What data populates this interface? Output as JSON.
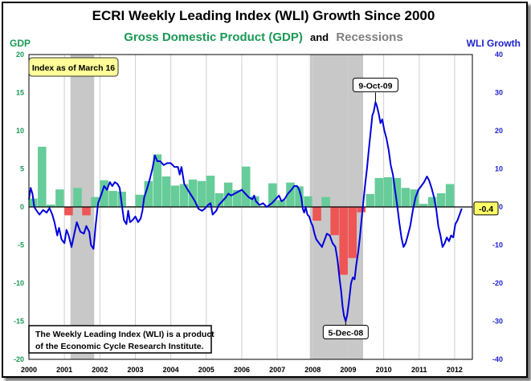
{
  "chart_data": {
    "type": "bar+line",
    "title": "ECRI Weekly Leading Index (WLI) Growth Since 2000",
    "subtitle": {
      "gdp": "Gross Domestic Product (GDP)",
      "and": "and",
      "recessions": "Recessions"
    },
    "left_axis": {
      "label": "GDP",
      "range": [
        -20,
        20
      ],
      "ticks": [
        20,
        15,
        10,
        5,
        0,
        -5,
        -10,
        -15,
        -20
      ]
    },
    "right_axis": {
      "label": "WLI Growth",
      "range": [
        -40,
        40
      ],
      "ticks": [
        40,
        30,
        20,
        10,
        0,
        -10,
        -20,
        -30,
        -40
      ]
    },
    "x_axis": {
      "range": [
        2000,
        2012.5
      ],
      "ticks": [
        "2000",
        "2001",
        "2002",
        "2003",
        "2004",
        "2005",
        "2006",
        "2007",
        "2008",
        "2009",
        "2010",
        "2011",
        "2012"
      ]
    },
    "recessions": [
      [
        2001.17,
        2001.84
      ],
      [
        2007.92,
        2009.42
      ]
    ],
    "gdp_quarters": [
      {
        "q": "2000Q1",
        "v": 1.1
      },
      {
        "q": "2000Q2",
        "v": 7.9
      },
      {
        "q": "2000Q3",
        "v": 0.3
      },
      {
        "q": "2000Q4",
        "v": 2.3
      },
      {
        "q": "2001Q1",
        "v": -1.1
      },
      {
        "q": "2001Q2",
        "v": 2.5
      },
      {
        "q": "2001Q3",
        "v": -1.1
      },
      {
        "q": "2001Q4",
        "v": 1.3
      },
      {
        "q": "2002Q1",
        "v": 3.5
      },
      {
        "q": "2002Q2",
        "v": 2.1
      },
      {
        "q": "2002Q3",
        "v": 2.0
      },
      {
        "q": "2002Q4",
        "v": 0.1
      },
      {
        "q": "2003Q1",
        "v": 1.6
      },
      {
        "q": "2003Q2",
        "v": 3.4
      },
      {
        "q": "2003Q3",
        "v": 6.9
      },
      {
        "q": "2003Q4",
        "v": 4.0
      },
      {
        "q": "2004Q1",
        "v": 2.8
      },
      {
        "q": "2004Q2",
        "v": 3.0
      },
      {
        "q": "2004Q3",
        "v": 3.6
      },
      {
        "q": "2004Q4",
        "v": 3.4
      },
      {
        "q": "2005Q1",
        "v": 4.1
      },
      {
        "q": "2005Q2",
        "v": 1.8
      },
      {
        "q": "2005Q3",
        "v": 3.2
      },
      {
        "q": "2005Q4",
        "v": 2.2
      },
      {
        "q": "2006Q1",
        "v": 5.3
      },
      {
        "q": "2006Q2",
        "v": 1.4
      },
      {
        "q": "2006Q3",
        "v": 0.1
      },
      {
        "q": "2006Q4",
        "v": 3.1
      },
      {
        "q": "2007Q1",
        "v": 0.9
      },
      {
        "q": "2007Q2",
        "v": 3.2
      },
      {
        "q": "2007Q3",
        "v": 2.7
      },
      {
        "q": "2007Q4",
        "v": 1.4
      },
      {
        "q": "2008Q1",
        "v": -1.8
      },
      {
        "q": "2008Q2",
        "v": 1.3
      },
      {
        "q": "2008Q3",
        "v": -3.7
      },
      {
        "q": "2008Q4",
        "v": -8.9
      },
      {
        "q": "2009Q1",
        "v": -6.7
      },
      {
        "q": "2009Q2",
        "v": -0.7
      },
      {
        "q": "2009Q3",
        "v": 1.7
      },
      {
        "q": "2009Q4",
        "v": 3.8
      },
      {
        "q": "2010Q1",
        "v": 3.9
      },
      {
        "q": "2010Q2",
        "v": 3.8
      },
      {
        "q": "2010Q3",
        "v": 2.5
      },
      {
        "q": "2010Q4",
        "v": 2.3
      },
      {
        "q": "2011Q1",
        "v": 0.4
      },
      {
        "q": "2011Q2",
        "v": 1.3
      },
      {
        "q": "2011Q3",
        "v": 1.8
      },
      {
        "q": "2011Q4",
        "v": 3.0
      }
    ],
    "wli_growth": [
      [
        2000.0,
        2.0
      ],
      [
        2000.05,
        5.0
      ],
      [
        2000.1,
        3.5
      ],
      [
        2000.15,
        0.0
      ],
      [
        2000.22,
        -1.0
      ],
      [
        2000.3,
        -2.0
      ],
      [
        2000.4,
        -0.8
      ],
      [
        2000.5,
        -1.5
      ],
      [
        2000.58,
        -0.3
      ],
      [
        2000.66,
        -2.0
      ],
      [
        2000.72,
        -4.0
      ],
      [
        2000.8,
        -7.5
      ],
      [
        2000.85,
        -5.5
      ],
      [
        2000.92,
        -8.5
      ],
      [
        2001.0,
        -9.5
      ],
      [
        2001.06,
        -6.0
      ],
      [
        2001.12,
        -7.5
      ],
      [
        2001.2,
        -10.5
      ],
      [
        2001.28,
        -7.0
      ],
      [
        2001.35,
        -4.0
      ],
      [
        2001.45,
        -6.5
      ],
      [
        2001.55,
        -7.0
      ],
      [
        2001.62,
        -5.0
      ],
      [
        2001.7,
        -6.5
      ],
      [
        2001.75,
        -10.0
      ],
      [
        2001.82,
        -11.0
      ],
      [
        2001.88,
        -5.0
      ],
      [
        2001.95,
        1.0
      ],
      [
        2002.05,
        3.5
      ],
      [
        2002.12,
        5.5
      ],
      [
        2002.2,
        4.5
      ],
      [
        2002.28,
        6.5
      ],
      [
        2002.35,
        5.5
      ],
      [
        2002.42,
        6.5
      ],
      [
        2002.5,
        6.0
      ],
      [
        2002.56,
        5.0
      ],
      [
        2002.62,
        0.5
      ],
      [
        2002.68,
        -3.5
      ],
      [
        2002.75,
        -4.5
      ],
      [
        2002.8,
        -1.0
      ],
      [
        2002.85,
        -4.0
      ],
      [
        2002.92,
        -3.5
      ],
      [
        2003.0,
        -2.5
      ],
      [
        2003.08,
        -4.0
      ],
      [
        2003.15,
        -3.0
      ],
      [
        2003.2,
        -1.0
      ],
      [
        2003.25,
        2.5
      ],
      [
        2003.32,
        4.5
      ],
      [
        2003.4,
        7.0
      ],
      [
        2003.48,
        10.0
      ],
      [
        2003.55,
        13.5
      ],
      [
        2003.62,
        12.0
      ],
      [
        2003.7,
        12.0
      ],
      [
        2003.8,
        11.0
      ],
      [
        2003.9,
        11.5
      ],
      [
        2004.0,
        11.5
      ],
      [
        2004.1,
        10.5
      ],
      [
        2004.2,
        10.5
      ],
      [
        2004.25,
        8.5
      ],
      [
        2004.3,
        10.5
      ],
      [
        2004.38,
        6.0
      ],
      [
        2004.48,
        4.5
      ],
      [
        2004.58,
        3.0
      ],
      [
        2004.68,
        1.5
      ],
      [
        2004.78,
        -0.5
      ],
      [
        2004.88,
        -1.0
      ],
      [
        2004.95,
        -0.5
      ],
      [
        2005.05,
        0.5
      ],
      [
        2005.12,
        1.0
      ],
      [
        2005.18,
        -2.0
      ],
      [
        2005.28,
        -1.0
      ],
      [
        2005.35,
        0.5
      ],
      [
        2005.45,
        1.5
      ],
      [
        2005.55,
        2.5
      ],
      [
        2005.62,
        3.5
      ],
      [
        2005.7,
        3.0
      ],
      [
        2005.8,
        3.5
      ],
      [
        2005.9,
        4.0
      ],
      [
        2006.0,
        4.5
      ],
      [
        2006.1,
        3.5
      ],
      [
        2006.2,
        2.5
      ],
      [
        2006.3,
        2.0
      ],
      [
        2006.35,
        3.0
      ],
      [
        2006.4,
        1.5
      ],
      [
        2006.5,
        0.5
      ],
      [
        2006.6,
        1.0
      ],
      [
        2006.7,
        0.0
      ],
      [
        2006.78,
        0.5
      ],
      [
        2006.85,
        1.0
      ],
      [
        2006.95,
        2.0
      ],
      [
        2007.05,
        3.0
      ],
      [
        2007.12,
        1.5
      ],
      [
        2007.2,
        2.0
      ],
      [
        2007.3,
        3.5
      ],
      [
        2007.4,
        4.5
      ],
      [
        2007.48,
        5.5
      ],
      [
        2007.56,
        5.5
      ],
      [
        2007.62,
        4.5
      ],
      [
        2007.68,
        2.5
      ],
      [
        2007.72,
        -0.5
      ],
      [
        2007.76,
        -1.5
      ],
      [
        2007.8,
        0.0
      ],
      [
        2007.85,
        -2.0
      ],
      [
        2007.9,
        -2.5
      ],
      [
        2007.95,
        -4.0
      ],
      [
        2008.0,
        -5.0
      ],
      [
        2008.05,
        -7.0
      ],
      [
        2008.1,
        -8.5
      ],
      [
        2008.18,
        -9.5
      ],
      [
        2008.26,
        -10.5
      ],
      [
        2008.32,
        -9.0
      ],
      [
        2008.4,
        -7.0
      ],
      [
        2008.48,
        -7.5
      ],
      [
        2008.56,
        -9.5
      ],
      [
        2008.64,
        -10.5
      ],
      [
        2008.7,
        -14.0
      ],
      [
        2008.76,
        -19.0
      ],
      [
        2008.8,
        -22.0
      ],
      [
        2008.84,
        -26.0
      ],
      [
        2008.88,
        -28.5
      ],
      [
        2008.93,
        -30.0
      ],
      [
        2008.97,
        -28.5
      ],
      [
        2009.02,
        -25.0
      ],
      [
        2009.08,
        -20.0
      ],
      [
        2009.13,
        -18.5
      ],
      [
        2009.18,
        -19.0
      ],
      [
        2009.23,
        -15.0
      ],
      [
        2009.28,
        -12.0
      ],
      [
        2009.33,
        -8.0
      ],
      [
        2009.38,
        -3.0
      ],
      [
        2009.43,
        1.5
      ],
      [
        2009.48,
        6.0
      ],
      [
        2009.53,
        10.0
      ],
      [
        2009.58,
        15.0
      ],
      [
        2009.63,
        19.5
      ],
      [
        2009.68,
        24.0
      ],
      [
        2009.72,
        25.0
      ],
      [
        2009.77,
        27.5
      ],
      [
        2009.81,
        26.5
      ],
      [
        2009.86,
        24.5
      ],
      [
        2009.91,
        22.0
      ],
      [
        2009.96,
        23.0
      ],
      [
        2010.02,
        20.0
      ],
      [
        2010.08,
        18.0
      ],
      [
        2010.14,
        15.0
      ],
      [
        2010.2,
        11.0
      ],
      [
        2010.26,
        8.5
      ],
      [
        2010.32,
        4.5
      ],
      [
        2010.38,
        0.5
      ],
      [
        2010.44,
        -4.0
      ],
      [
        2010.5,
        -8.0
      ],
      [
        2010.56,
        -10.5
      ],
      [
        2010.62,
        -9.5
      ],
      [
        2010.68,
        -7.5
      ],
      [
        2010.75,
        -5.0
      ],
      [
        2010.82,
        -1.0
      ],
      [
        2010.9,
        2.5
      ],
      [
        2010.98,
        4.5
      ],
      [
        2011.06,
        5.5
      ],
      [
        2011.14,
        6.5
      ],
      [
        2011.22,
        8.0
      ],
      [
        2011.28,
        7.0
      ],
      [
        2011.35,
        5.0
      ],
      [
        2011.42,
        2.5
      ],
      [
        2011.48,
        -0.5
      ],
      [
        2011.54,
        -5.0
      ],
      [
        2011.6,
        -7.5
      ],
      [
        2011.66,
        -10.5
      ],
      [
        2011.72,
        -9.5
      ],
      [
        2011.78,
        -8.0
      ],
      [
        2011.84,
        -9.0
      ],
      [
        2011.9,
        -7.5
      ],
      [
        2011.96,
        -8.0
      ],
      [
        2012.02,
        -4.5
      ],
      [
        2012.08,
        -3.5
      ],
      [
        2012.14,
        -2.0
      ],
      [
        2012.2,
        -0.4
      ]
    ],
    "annotations": {
      "peak": {
        "label": "9-Oct-09",
        "x": 2009.77,
        "y": 27.5
      },
      "trough": {
        "label": "5-Dec-08",
        "x": 2008.93,
        "y": -30.0
      },
      "latest": {
        "label": "-0.4",
        "x": 2012.2,
        "y": -0.4
      }
    },
    "index_note": "Index as of March 16",
    "source_note": [
      "The Weekly Leading Index (WLI) is a product",
      "of the Economic Cycle Research Institute."
    ],
    "colors": {
      "gdp_positive": "#66cc99",
      "gdp_negative": "#ee5555",
      "wli_line": "#0000dd",
      "recession": "#c8c8c8",
      "gdp_text": "#1a9955",
      "recession_text": "#7f7f7f",
      "right_axis_text": "#1e22cc",
      "note_bg": "#ffff99",
      "latest_bg": "#ffff66"
    }
  }
}
